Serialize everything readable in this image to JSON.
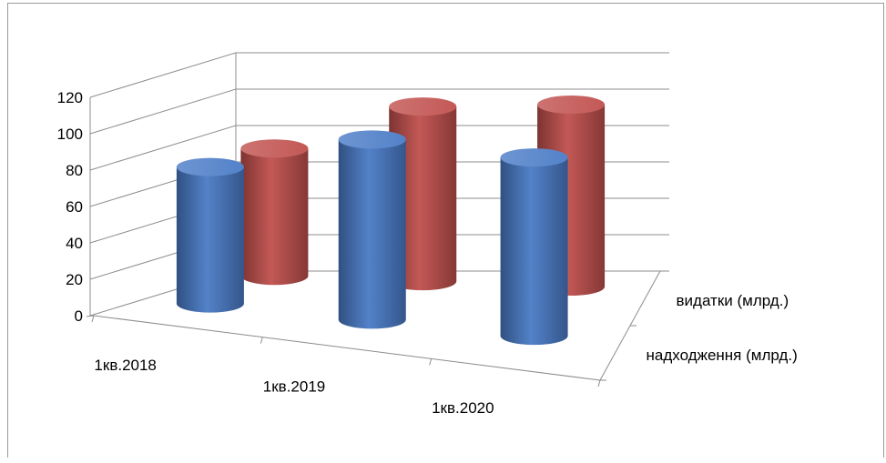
{
  "chart_data": {
    "type": "bar",
    "subtype": "3d-cylinder",
    "title": "",
    "xlabel": "",
    "ylabel": "",
    "ylim": [
      0,
      120
    ],
    "yticks": [
      0,
      20,
      40,
      60,
      80,
      100,
      120
    ],
    "categories": [
      "1кв.2018",
      "1кв.2019",
      "1кв.2020"
    ],
    "series": [
      {
        "name": "надходження (млрд.)",
        "values": [
          75,
          99,
          98
        ],
        "color": "#4a7bc6"
      },
      {
        "name": "видатки (млрд.)",
        "values": [
          70,
          96,
          100
        ],
        "color": "#c0504d"
      }
    ],
    "grid": true
  }
}
